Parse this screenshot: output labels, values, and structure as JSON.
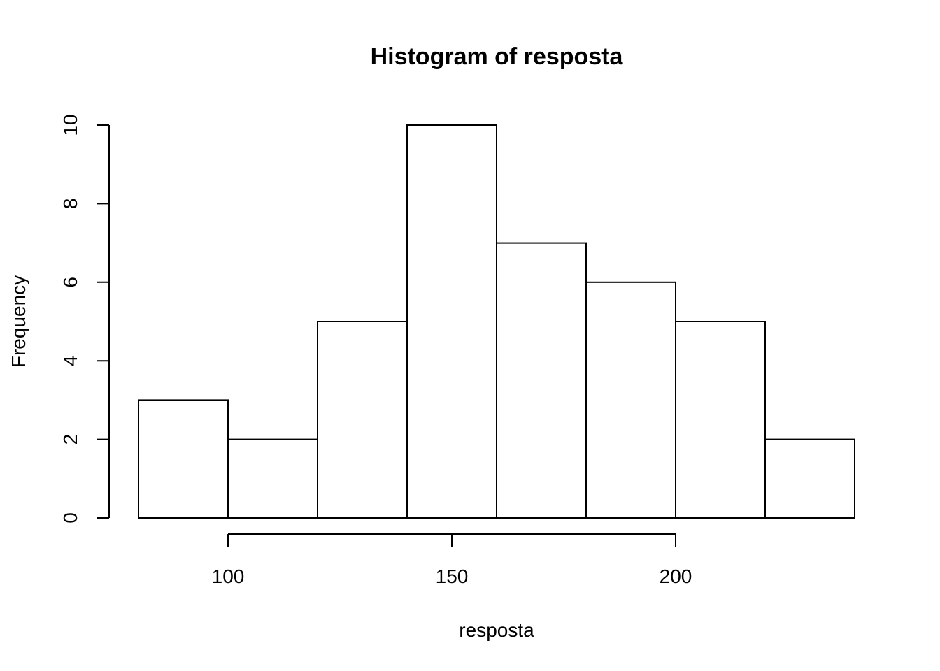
{
  "chart_data": {
    "type": "bar",
    "title": "Histogram of resposta",
    "xlabel": "resposta",
    "ylabel": "Frequency",
    "bins": [
      {
        "start": 80,
        "end": 100,
        "count": 3
      },
      {
        "start": 100,
        "end": 120,
        "count": 2
      },
      {
        "start": 120,
        "end": 140,
        "count": 5
      },
      {
        "start": 140,
        "end": 160,
        "count": 10
      },
      {
        "start": 160,
        "end": 180,
        "count": 7
      },
      {
        "start": 180,
        "end": 200,
        "count": 6
      },
      {
        "start": 200,
        "end": 220,
        "count": 5
      },
      {
        "start": 220,
        "end": 240,
        "count": 2
      }
    ],
    "xticks": [
      "100",
      "150",
      "200"
    ],
    "yticks": [
      "0",
      "2",
      "4",
      "6",
      "8",
      "10"
    ],
    "xlim": [
      80,
      240
    ],
    "ylim": [
      0,
      10
    ],
    "grid": false,
    "colors": {
      "bar_fill": "#ffffff",
      "bar_stroke": "#000000"
    }
  }
}
